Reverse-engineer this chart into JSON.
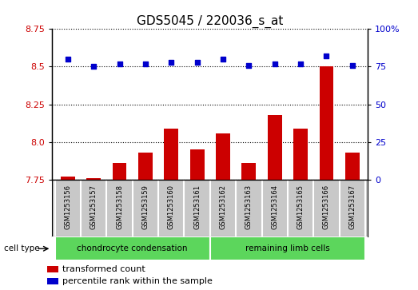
{
  "title": "GDS5045 / 220036_s_at",
  "samples": [
    "GSM1253156",
    "GSM1253157",
    "GSM1253158",
    "GSM1253159",
    "GSM1253160",
    "GSM1253161",
    "GSM1253162",
    "GSM1253163",
    "GSM1253164",
    "GSM1253165",
    "GSM1253166",
    "GSM1253167"
  ],
  "transformed_count": [
    7.77,
    7.76,
    7.86,
    7.93,
    8.09,
    7.95,
    8.06,
    7.86,
    8.18,
    8.09,
    8.5,
    7.93
  ],
  "percentile_rank": [
    80,
    75,
    77,
    77,
    78,
    78,
    80,
    76,
    77,
    77,
    82,
    76
  ],
  "ylim_left": [
    7.75,
    8.75
  ],
  "ylim_right": [
    0,
    100
  ],
  "yticks_left": [
    7.75,
    8.0,
    8.25,
    8.5,
    8.75
  ],
  "yticks_right": [
    0,
    25,
    50,
    75,
    100
  ],
  "ytick_right_labels": [
    "0",
    "25",
    "50",
    "75",
    "100%"
  ],
  "bar_color": "#CC0000",
  "dot_color": "#0000CC",
  "tick_area_color": "#C8C8C8",
  "cell_type_bg": "#5CD65C",
  "cell_type_label": "cell type",
  "groups": [
    {
      "label": "chondrocyte condensation",
      "start": 0,
      "end": 6
    },
    {
      "label": "remaining limb cells",
      "start": 6,
      "end": 12
    }
  ],
  "legend_items": [
    {
      "label": "transformed count",
      "color": "#CC0000"
    },
    {
      "label": "percentile rank within the sample",
      "color": "#0000CC"
    }
  ],
  "title_fontsize": 11
}
